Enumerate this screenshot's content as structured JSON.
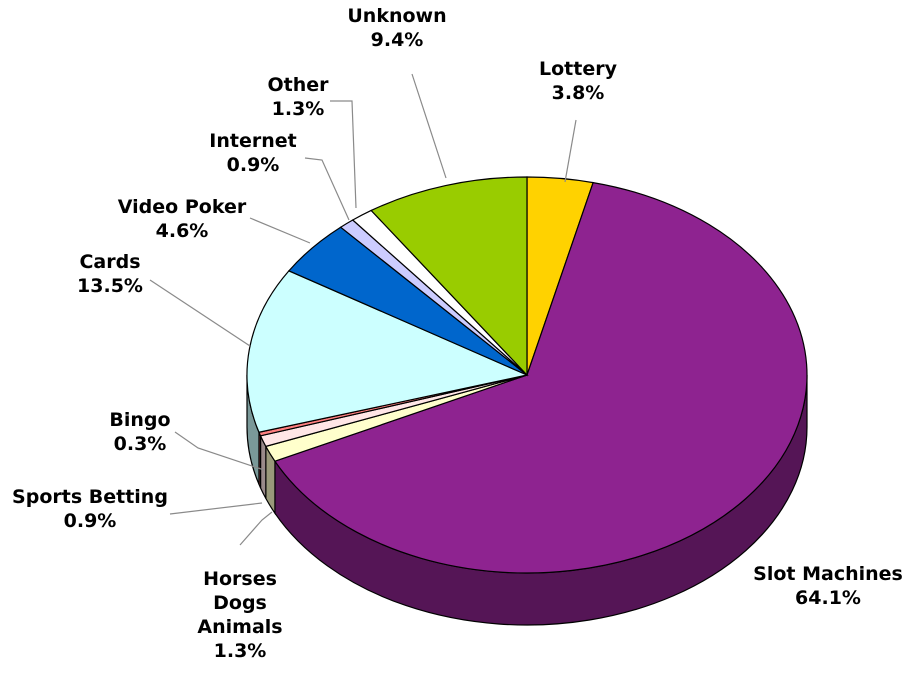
{
  "chart_data": {
    "type": "pie",
    "three_d": true,
    "legend": "none",
    "slices": [
      {
        "name": "Lottery",
        "value_label": "3.8%",
        "value": 3.8,
        "color": "#FFD200"
      },
      {
        "name": "Slot Machines",
        "value_label": "64.1%",
        "value": 64.1,
        "color": "#8E2390"
      },
      {
        "name": "Horses\nDogs\nAnimals",
        "value_label": "1.3%",
        "value": 1.3,
        "color": "#FFFFCC"
      },
      {
        "name": "Sports Betting",
        "value_label": "0.9%",
        "value": 0.9,
        "color": "#FFE6E6"
      },
      {
        "name": "Bingo",
        "value_label": "0.3%",
        "value": 0.3,
        "color": "#FF8080"
      },
      {
        "name": "Cards",
        "value_label": "13.5%",
        "value": 13.5,
        "color": "#CCFFFF"
      },
      {
        "name": "Video Poker",
        "value_label": "4.6%",
        "value": 4.6,
        "color": "#0066CC"
      },
      {
        "name": "Internet",
        "value_label": "0.9%",
        "value": 0.9,
        "color": "#CCCCFF"
      },
      {
        "name": "Other",
        "value_label": "1.3%",
        "value": 1.3,
        "color": "#FFFFFF"
      },
      {
        "name": "Unknown",
        "value_label": "9.4%",
        "value": 9.4,
        "color": "#99CC00"
      }
    ]
  }
}
